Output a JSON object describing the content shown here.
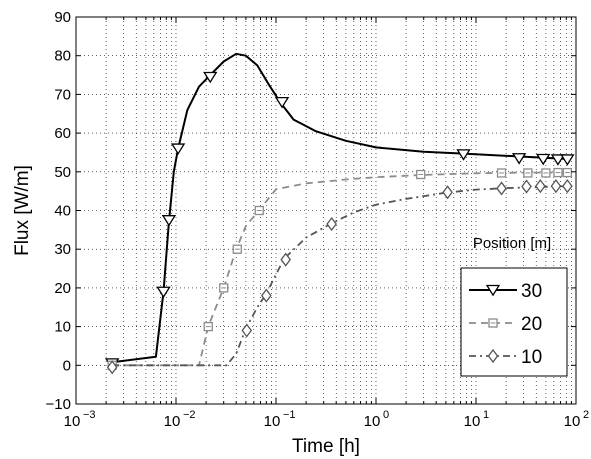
{
  "chart_data": {
    "type": "line",
    "title": "",
    "xlabel": "Time [h]",
    "ylabel": "Flux [W/m]",
    "xscale": "log",
    "xlim": [
      0.001,
      100
    ],
    "ylim": [
      -10,
      90
    ],
    "grid": true,
    "grid_style": "dotted",
    "x_ticks": [
      {
        "value": 0.001,
        "base": "10",
        "exp": "−3"
      },
      {
        "value": 0.01,
        "base": "10",
        "exp": "−2"
      },
      {
        "value": 0.1,
        "base": "10",
        "exp": "−1"
      },
      {
        "value": 1,
        "base": "10",
        "exp": "0"
      },
      {
        "value": 10,
        "base": "10",
        "exp": "1"
      },
      {
        "value": 100,
        "base": "10",
        "exp": "2"
      }
    ],
    "y_ticks": [
      -10,
      0,
      10,
      20,
      30,
      40,
      50,
      60,
      70,
      80,
      90
    ],
    "legend": {
      "title": "Position [m]",
      "position": "lower right"
    },
    "series": [
      {
        "name": "30",
        "color": "#000000",
        "line_style": "solid",
        "marker": "triangle-down",
        "curve": [
          [
            0.0023,
            0.8
          ],
          [
            0.0063,
            2.2
          ],
          [
            0.0075,
            19
          ],
          [
            0.0085,
            37
          ],
          [
            0.0095,
            50
          ],
          [
            0.0105,
            56
          ],
          [
            0.013,
            66
          ],
          [
            0.017,
            72
          ],
          [
            0.022,
            75
          ],
          [
            0.03,
            78.5
          ],
          [
            0.04,
            80.5
          ],
          [
            0.05,
            80
          ],
          [
            0.065,
            77.5
          ],
          [
            0.085,
            72.5
          ],
          [
            0.11,
            68
          ],
          [
            0.15,
            63.5
          ],
          [
            0.25,
            60.5
          ],
          [
            0.5,
            58
          ],
          [
            1,
            56.3
          ],
          [
            3,
            55.2
          ],
          [
            7.5,
            54.7
          ],
          [
            25,
            54
          ],
          [
            50,
            53.6
          ],
          [
            85,
            53.3
          ]
        ],
        "markers": [
          [
            0.0023,
            0.5
          ],
          [
            0.0075,
            19
          ],
          [
            0.0085,
            37.5
          ],
          [
            0.0105,
            56
          ],
          [
            0.022,
            74.5
          ],
          [
            0.115,
            68
          ],
          [
            7.5,
            54.5
          ],
          [
            27,
            53.5
          ],
          [
            47,
            53.3
          ],
          [
            66,
            53.2
          ],
          [
            82,
            53.2
          ]
        ]
      },
      {
        "name": "20",
        "color": "#8c8c8c",
        "line_style": "dashed",
        "marker": "square",
        "curve": [
          [
            0.0023,
            0
          ],
          [
            0.017,
            0
          ],
          [
            0.021,
            10
          ],
          [
            0.03,
            20
          ],
          [
            0.04,
            30
          ],
          [
            0.05,
            36
          ],
          [
            0.07,
            40.5
          ],
          [
            0.1,
            45.5
          ],
          [
            0.2,
            47
          ],
          [
            0.5,
            48
          ],
          [
            1,
            48.6
          ],
          [
            3,
            49.2
          ],
          [
            10,
            49.6
          ],
          [
            30,
            49.8
          ],
          [
            85,
            49.8
          ]
        ],
        "markers": [
          [
            0.0023,
            0
          ],
          [
            0.021,
            10
          ],
          [
            0.03,
            20
          ],
          [
            0.041,
            30
          ],
          [
            0.068,
            40
          ],
          [
            2.8,
            49.3
          ],
          [
            18,
            49.7
          ],
          [
            33,
            49.7
          ],
          [
            50,
            49.7
          ],
          [
            66,
            49.8
          ],
          [
            82,
            49.8
          ]
        ]
      },
      {
        "name": "10",
        "color": "#555555",
        "line_style": "dash-dot",
        "marker": "diamond",
        "curve": [
          [
            0.0023,
            0
          ],
          [
            0.032,
            0
          ],
          [
            0.04,
            3
          ],
          [
            0.05,
            9.5
          ],
          [
            0.065,
            15
          ],
          [
            0.08,
            18.5
          ],
          [
            0.12,
            27.5
          ],
          [
            0.2,
            33
          ],
          [
            0.35,
            36.5
          ],
          [
            0.6,
            39.5
          ],
          [
            1,
            41.5
          ],
          [
            2,
            43
          ],
          [
            5,
            44.6
          ],
          [
            10,
            45.4
          ],
          [
            20,
            45.8
          ],
          [
            50,
            46.1
          ],
          [
            85,
            46.3
          ]
        ],
        "markers": [
          [
            0.0023,
            -0.5
          ],
          [
            0.051,
            9
          ],
          [
            0.08,
            18
          ],
          [
            0.125,
            27.3
          ],
          [
            0.36,
            36.5
          ],
          [
            5.2,
            44.7
          ],
          [
            18,
            45.7
          ],
          [
            32,
            46.2
          ],
          [
            44,
            46.3
          ],
          [
            63,
            46.3
          ],
          [
            82,
            46.3
          ]
        ]
      }
    ]
  }
}
